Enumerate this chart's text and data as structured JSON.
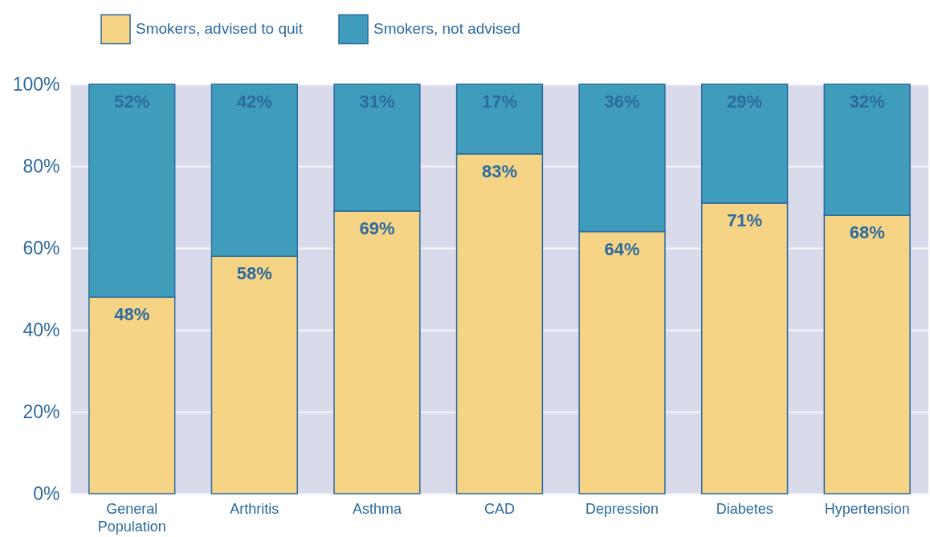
{
  "chart_data": {
    "type": "bar",
    "stacked": true,
    "categories": [
      "General Population",
      "Arthritis",
      "Asthma",
      "CAD",
      "Depression",
      "Diabetes",
      "Hypertension"
    ],
    "series": [
      {
        "name": "Smokers, advised to quit",
        "color": "#f5d485",
        "values": [
          48,
          58,
          69,
          83,
          64,
          71,
          68
        ],
        "value_labels": [
          "48%",
          "58%",
          "69%",
          "83%",
          "64%",
          "71%",
          "68%"
        ]
      },
      {
        "name": "Smokers, not advised",
        "color": "#3f9cba",
        "values": [
          52,
          42,
          31,
          17,
          36,
          29,
          32
        ],
        "value_labels": [
          "52%",
          "42%",
          "31%",
          "17%",
          "36%",
          "29%",
          "32%"
        ]
      }
    ],
    "ylim": [
      0,
      100
    ],
    "yticks": [
      {
        "value": 0,
        "label": "0%"
      },
      {
        "value": 20,
        "label": "20%"
      },
      {
        "value": 40,
        "label": "40%"
      },
      {
        "value": 60,
        "label": "60%"
      },
      {
        "value": 80,
        "label": "80%"
      },
      {
        "value": 100,
        "label": "100%"
      }
    ],
    "grid": "y",
    "legend": "top left"
  }
}
